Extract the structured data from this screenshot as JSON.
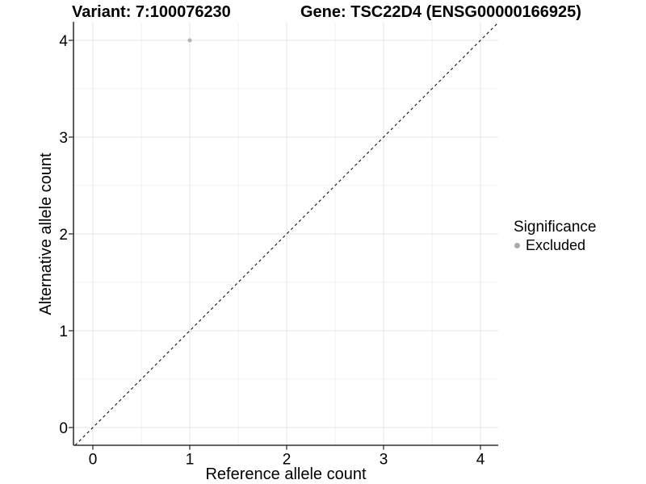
{
  "titles": {
    "variant": "Variant: 7:100076230",
    "gene": "Gene: TSC22D4 (ENSG00000166925)"
  },
  "chart_data": {
    "type": "scatter",
    "xlabel": "Reference allele count",
    "ylabel": "Alternative allele count",
    "xlim": [
      -0.2,
      4.18
    ],
    "ylim": [
      -0.18,
      4.18
    ],
    "xticks": [
      0,
      1,
      2,
      3,
      4
    ],
    "yticks": [
      0,
      1,
      2,
      3,
      4
    ],
    "minor_xticks": [
      0.5,
      1.5,
      2.5,
      3.5
    ],
    "minor_yticks": [
      0.5,
      1.5,
      2.5,
      3.5
    ],
    "grid": true,
    "points": [
      {
        "x": 1,
        "y": 4,
        "series": "Excluded",
        "color": "#b3b3b3"
      }
    ],
    "reference_line": {
      "slope": 1,
      "intercept": 0,
      "style": "dashed",
      "color": "#111111"
    },
    "legend": {
      "title": "Significance",
      "position": "right",
      "items": [
        {
          "label": "Excluded",
          "color": "#ababab"
        }
      ]
    }
  },
  "colors": {
    "grid_major": "#e4e4e4",
    "grid_minor": "#f0f0f0",
    "axis": "#333333",
    "tick_label": "#000000",
    "background": "#ffffff"
  }
}
